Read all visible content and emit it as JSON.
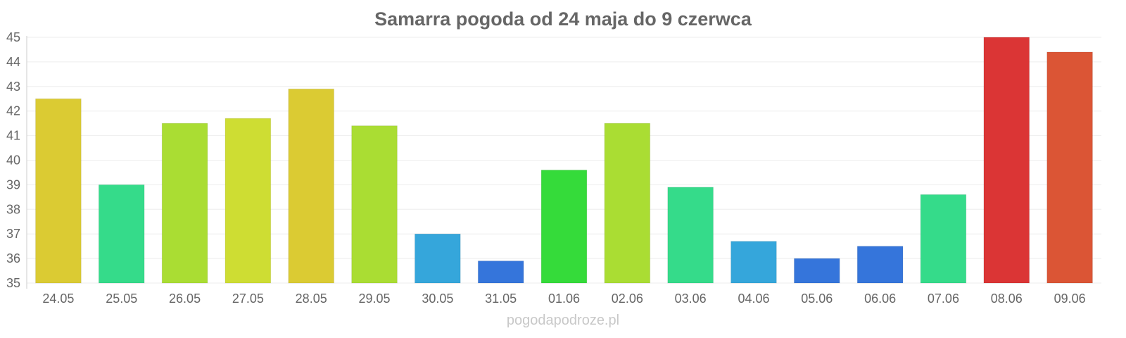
{
  "chart_data": {
    "type": "bar",
    "title": "Samarra pogoda od 24 maja do 9 czerwca",
    "xlabel": "",
    "ylabel": "",
    "ylim": [
      35,
      45
    ],
    "yticks": [
      35,
      36,
      37,
      38,
      39,
      40,
      41,
      42,
      43,
      44,
      45
    ],
    "grid": true,
    "categories": [
      "24.05",
      "25.05",
      "26.05",
      "27.05",
      "28.05",
      "29.05",
      "30.05",
      "31.05",
      "01.06",
      "02.06",
      "03.06",
      "04.06",
      "05.06",
      "06.06",
      "07.06",
      "08.06",
      "09.06"
    ],
    "values": [
      42.5,
      39.0,
      41.5,
      41.7,
      42.9,
      41.4,
      37.0,
      35.9,
      39.6,
      41.5,
      38.9,
      36.7,
      36.0,
      36.5,
      38.6,
      45.0,
      44.4
    ],
    "colors": [
      "#dbcb33",
      "#35db8a",
      "#aadd33",
      "#cedd33",
      "#dbcb33",
      "#aadd33",
      "#35a6db",
      "#3575db",
      "#35db3a",
      "#aadd33",
      "#35db8a",
      "#35a6db",
      "#3575db",
      "#3575db",
      "#35db8a",
      "#db3535",
      "#db5535"
    ]
  },
  "footer": {
    "watermark": "pogodapodroze.pl"
  }
}
